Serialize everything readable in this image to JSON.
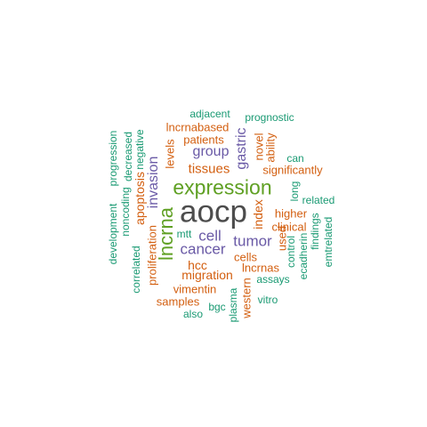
{
  "palette": {
    "c1": "#4d4d4d",
    "c2": "#5fa023",
    "c3": "#6a5aa6",
    "c4": "#d35f10",
    "c5": "#1a9a73"
  },
  "words": {
    "aocp": "aocp",
    "expression": "expression",
    "lncrna": "lncrna",
    "invasion": "invasion",
    "cancer": "cancer",
    "tumor": "tumor",
    "cell": "cell",
    "group": "group",
    "gastric": "gastric",
    "tissues": "tissues",
    "apoptosis": "apoptosis",
    "index": "index",
    "hcc": "hcc",
    "migration": "migration",
    "patients": "patients",
    "lncrnabased": "lncrnabased",
    "levels": "levels",
    "novel": "novel",
    "ability": "ability",
    "significantly": "significantly",
    "higher": "higher",
    "clinical": "clinical",
    "cells": "cells",
    "lncrnas": "lncrnas",
    "vimentin": "vimentin",
    "samples": "samples",
    "proliferation": "proliferation",
    "western": "western",
    "used": "used",
    "adjacent": "adjacent",
    "prognostic": "prognostic",
    "can": "can",
    "long": "long",
    "related": "related",
    "development": "development",
    "progression": "progression",
    "noncoding": "noncoding",
    "decreased": "decreased",
    "negative": "negative",
    "correlated": "correlated",
    "mtt": "mtt",
    "control": "control",
    "ecadherin": "ecadherin",
    "findings": "findings",
    "emtrelated": "emtrelated",
    "assays": "assays",
    "vitro": "vitro",
    "plasma": "plasma",
    "bgc": "bgc",
    "also": "also"
  }
}
